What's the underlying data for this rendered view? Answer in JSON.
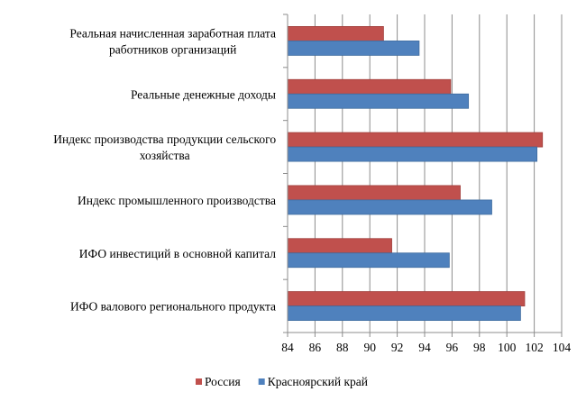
{
  "chart_data": {
    "type": "bar",
    "orientation": "horizontal",
    "title": "",
    "xlabel": "",
    "ylabel": "",
    "categories": [
      [
        "Реальная начисленная заработная плата",
        "работников организаций"
      ],
      [
        "Реальные денежные доходы"
      ],
      [
        "Индекс производства продукции сельского",
        "хозяйства"
      ],
      [
        "Индекс промышленного производства"
      ],
      [
        "ИФО инвестиций в основной капитал"
      ],
      [
        "ИФО валового регионального продукта"
      ]
    ],
    "series": [
      {
        "name": "Россия",
        "color": "#c0504d",
        "values": [
          91.0,
          95.9,
          102.6,
          96.6,
          91.6,
          101.3
        ]
      },
      {
        "name": "Красноярский край",
        "color": "#4f81bd",
        "values": [
          93.6,
          97.2,
          102.2,
          98.9,
          95.8,
          101.0
        ]
      }
    ],
    "xlim": [
      84,
      104
    ],
    "xticks": [
      "84",
      "86",
      "88",
      "90",
      "92",
      "94",
      "96",
      "98",
      "100",
      "102",
      "104"
    ],
    "grid": true,
    "legend_position": "bottom"
  }
}
